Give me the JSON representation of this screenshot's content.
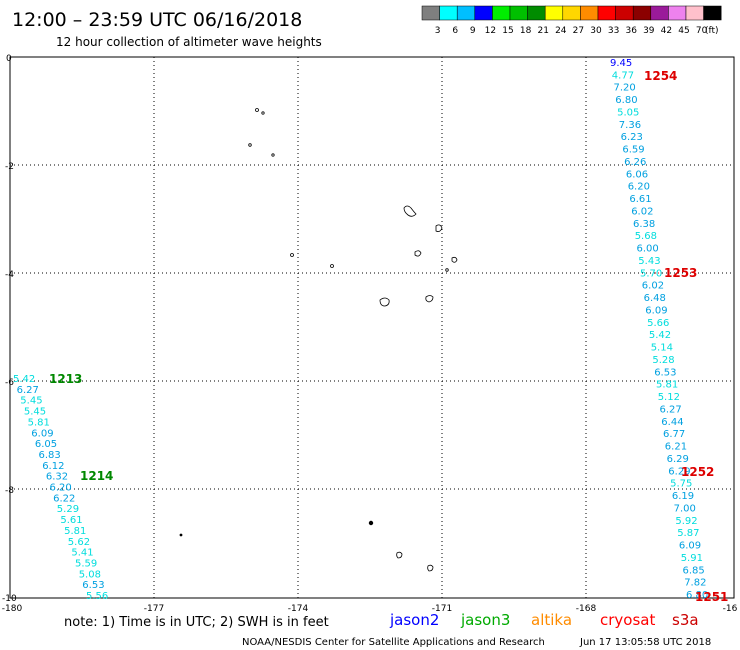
{
  "header": {
    "title": "12:00 – 23:59 UTC 06/16/2018",
    "subtitle": "12 hour collection of altimeter wave heights"
  },
  "legend": {
    "unit": "(ft)",
    "bins": [
      {
        "label": "3",
        "color": "#7f7f7f"
      },
      {
        "label": "6",
        "color": "#00ffff"
      },
      {
        "label": "9",
        "color": "#00bfff"
      },
      {
        "label": "12",
        "color": "#0000ff"
      },
      {
        "label": "15",
        "color": "#00ee00"
      },
      {
        "label": "18",
        "color": "#00c000"
      },
      {
        "label": "21",
        "color": "#008c00"
      },
      {
        "label": "24",
        "color": "#ffff00"
      },
      {
        "label": "27",
        "color": "#ffd700"
      },
      {
        "label": "30",
        "color": "#ff8c00"
      },
      {
        "label": "33",
        "color": "#ff0000"
      },
      {
        "label": "36",
        "color": "#cc0000"
      },
      {
        "label": "39",
        "color": "#8b0000"
      },
      {
        "label": "42",
        "color": "#9a1a9a"
      },
      {
        "label": "45",
        "color": "#ee82ee"
      },
      {
        "label": "70",
        "color": "#ffc0cb"
      },
      {
        "label": "",
        "color": "#000000"
      }
    ]
  },
  "axes": {
    "x_ticks": [
      "-180",
      "-177",
      "-174",
      "-171",
      "-168",
      "-16"
    ],
    "y_ticks": [
      "0",
      "-2",
      "-4",
      "-6",
      "-8",
      "-10"
    ],
    "grid": "dotted"
  },
  "footer": {
    "note": "note:  1) Time is in UTC;  2) SWH is in feet",
    "satellites": [
      {
        "name": "jason2",
        "color": "#0000ff"
      },
      {
        "name": "jason3",
        "color": "#00aa00"
      },
      {
        "name": "altika",
        "color": "#ff8c00"
      },
      {
        "name": "cryosat",
        "color": "#ff0000"
      },
      {
        "name": "s3a",
        "color": "#cc0000"
      }
    ],
    "credit": "NOAA/NESDIS Center for Satellite Applications and Research",
    "timestamp": "Jun 17 13:05:58 UTC 2018"
  },
  "tracks": [
    {
      "name": "right-track",
      "pass_labels": [
        {
          "text": "1254",
          "color": "#dd0000"
        },
        {
          "text": "1253",
          "color": "#dd0000"
        },
        {
          "text": "1252",
          "color": "#dd0000"
        },
        {
          "text": "1251",
          "color": "#dd0000"
        }
      ],
      "readings": [
        {
          "v": "9.45",
          "c": "#0000ff"
        },
        {
          "v": "4.77",
          "c": "#00dddd"
        },
        {
          "v": "7.20",
          "c": "#00a0e0"
        },
        {
          "v": "6.80",
          "c": "#00a0e0"
        },
        {
          "v": "5.05",
          "c": "#00dddd"
        },
        {
          "v": "7.36",
          "c": "#00a0e0"
        },
        {
          "v": "6.23",
          "c": "#00a0e0"
        },
        {
          "v": "6.59",
          "c": "#00a0e0"
        },
        {
          "v": "6.26",
          "c": "#00a0e0"
        },
        {
          "v": "6.06",
          "c": "#00a0e0"
        },
        {
          "v": "6.20",
          "c": "#00a0e0"
        },
        {
          "v": "6.61",
          "c": "#00a0e0"
        },
        {
          "v": "6.02",
          "c": "#00a0e0"
        },
        {
          "v": "6.38",
          "c": "#00a0e0"
        },
        {
          "v": "5.68",
          "c": "#00dddd"
        },
        {
          "v": "6.00",
          "c": "#00a0e0"
        },
        {
          "v": "5.43",
          "c": "#00dddd"
        },
        {
          "v": "5.70",
          "c": "#00dddd"
        },
        {
          "v": "6.02",
          "c": "#00a0e0"
        },
        {
          "v": "6.48",
          "c": "#00a0e0"
        },
        {
          "v": "6.09",
          "c": "#00a0e0"
        },
        {
          "v": "5.66",
          "c": "#00dddd"
        },
        {
          "v": "5.42",
          "c": "#00dddd"
        },
        {
          "v": "5.14",
          "c": "#00dddd"
        },
        {
          "v": "5.28",
          "c": "#00dddd"
        },
        {
          "v": "6.53",
          "c": "#00a0e0"
        },
        {
          "v": "5.81",
          "c": "#00dddd"
        },
        {
          "v": "5.12",
          "c": "#00dddd"
        },
        {
          "v": "6.27",
          "c": "#00a0e0"
        },
        {
          "v": "6.44",
          "c": "#00a0e0"
        },
        {
          "v": "6.77",
          "c": "#00a0e0"
        },
        {
          "v": "6.21",
          "c": "#00a0e0"
        },
        {
          "v": "6.29",
          "c": "#00a0e0"
        },
        {
          "v": "6.29",
          "c": "#00a0e0"
        },
        {
          "v": "5.75",
          "c": "#00dddd"
        },
        {
          "v": "6.19",
          "c": "#00a0e0"
        },
        {
          "v": "7.00",
          "c": "#00a0e0"
        },
        {
          "v": "5.92",
          "c": "#00dddd"
        },
        {
          "v": "5.87",
          "c": "#00dddd"
        },
        {
          "v": "6.09",
          "c": "#00a0e0"
        },
        {
          "v": "5.91",
          "c": "#00dddd"
        },
        {
          "v": "6.85",
          "c": "#00a0e0"
        },
        {
          "v": "7.82",
          "c": "#00a0e0"
        },
        {
          "v": "6.80",
          "c": "#00a0e0"
        }
      ]
    },
    {
      "name": "left-track",
      "pass_labels": [
        {
          "text": "1213",
          "color": "#008800"
        },
        {
          "text": "1214",
          "color": "#008800"
        }
      ],
      "readings": [
        {
          "v": "5.42",
          "c": "#00dddd"
        },
        {
          "v": "6.27",
          "c": "#00a0e0"
        },
        {
          "v": "5.45",
          "c": "#00dddd"
        },
        {
          "v": "5.45",
          "c": "#00dddd"
        },
        {
          "v": "5.81",
          "c": "#00dddd"
        },
        {
          "v": "6.09",
          "c": "#00a0e0"
        },
        {
          "v": "6.05",
          "c": "#00a0e0"
        },
        {
          "v": "6.83",
          "c": "#00a0e0"
        },
        {
          "v": "6.12",
          "c": "#00a0e0"
        },
        {
          "v": "6.32",
          "c": "#00a0e0"
        },
        {
          "v": "6.20",
          "c": "#00a0e0"
        },
        {
          "v": "6.22",
          "c": "#00a0e0"
        },
        {
          "v": "5.29",
          "c": "#00dddd"
        },
        {
          "v": "5.61",
          "c": "#00dddd"
        },
        {
          "v": "5.81",
          "c": "#00dddd"
        },
        {
          "v": "5.62",
          "c": "#00dddd"
        },
        {
          "v": "5.41",
          "c": "#00dddd"
        },
        {
          "v": "5.59",
          "c": "#00dddd"
        },
        {
          "v": "5.08",
          "c": "#00dddd"
        },
        {
          "v": "6.53",
          "c": "#00a0e0"
        },
        {
          "v": "5.56",
          "c": "#00dddd"
        }
      ]
    }
  ]
}
